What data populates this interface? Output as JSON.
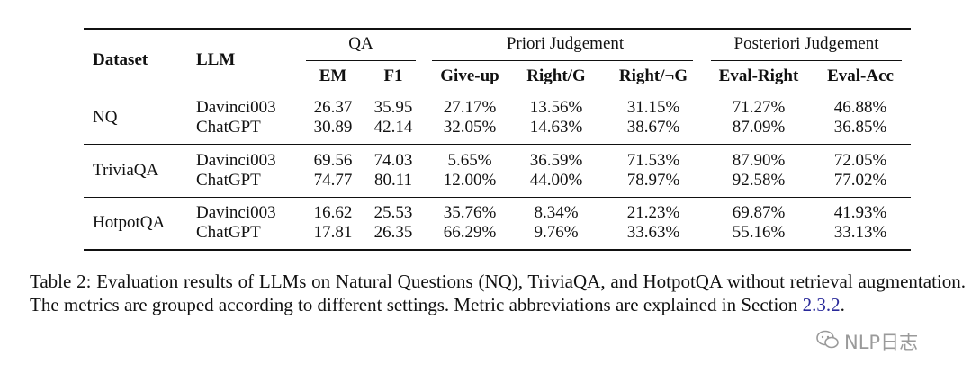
{
  "table": {
    "header": {
      "dataset": "Dataset",
      "llm": "LLM",
      "groups": [
        "QA",
        "Priori Judgement",
        "Posteriori Judgement"
      ],
      "columns": [
        "EM",
        "F1",
        "Give-up",
        "Right/G",
        "Right/¬G",
        "Eval-Right",
        "Eval-Acc"
      ]
    },
    "rows": [
      {
        "dataset": "NQ",
        "entries": [
          [
            "Davinci003",
            "26.37",
            "35.95",
            "27.17%",
            "13.56%",
            "31.15%",
            "71.27%",
            "46.88%"
          ],
          [
            "ChatGPT",
            "30.89",
            "42.14",
            "32.05%",
            "14.63%",
            "38.67%",
            "87.09%",
            "36.85%"
          ]
        ]
      },
      {
        "dataset": "TriviaQA",
        "entries": [
          [
            "Davinci003",
            "69.56",
            "74.03",
            "5.65%",
            "36.59%",
            "71.53%",
            "87.90%",
            "72.05%"
          ],
          [
            "ChatGPT",
            "74.77",
            "80.11",
            "12.00%",
            "44.00%",
            "78.97%",
            "92.58%",
            "77.02%"
          ]
        ]
      },
      {
        "dataset": "HotpotQA",
        "entries": [
          [
            "Davinci003",
            "16.62",
            "25.53",
            "35.76%",
            "8.34%",
            "21.23%",
            "69.87%",
            "41.93%"
          ],
          [
            "ChatGPT",
            "17.81",
            "26.35",
            "66.29%",
            "9.76%",
            "33.63%",
            "55.16%",
            "33.13%"
          ]
        ]
      }
    ]
  },
  "caption": {
    "text": "Table 2: Evaluation results of LLMs on Natural Questions (NQ), TriviaQA, and HotpotQA without retrieval augmentation. The metrics are grouped according to different settings. Metric abbreviations are explained in Section ",
    "ref": "2.3.2",
    "end": "."
  },
  "watermark": "NLP日志"
}
